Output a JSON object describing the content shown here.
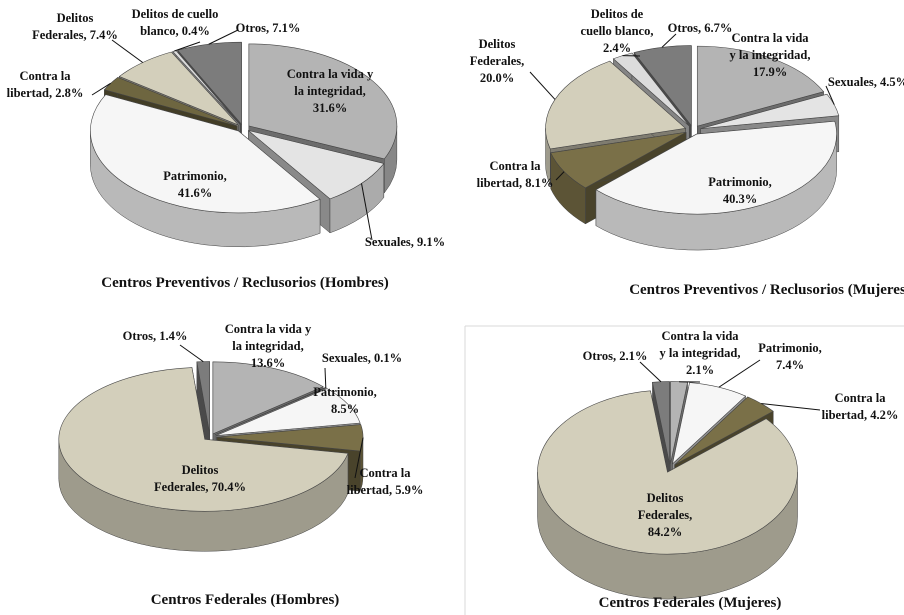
{
  "chart_data": [
    {
      "type": "pie",
      "title": "Centros Preventivos / Reclusorios (Hombres)",
      "values": [
        31.6,
        9.1,
        41.6,
        2.8,
        7.4,
        0.4,
        7.1
      ],
      "value_labels": [
        [
          "Contra la vida y",
          "la integridad,",
          "31.6%"
        ],
        [
          "Sexuales, 9.1%"
        ],
        [
          "Patrimonio,",
          "41.6%"
        ],
        [
          "Contra la",
          "libertad, 2.8%"
        ],
        [
          "Delitos",
          "Federales, 7.4%"
        ],
        [
          "Delitos de cuello",
          "blanco, 0.4%"
        ],
        [
          "Otros, 7.1%"
        ]
      ],
      "colors": [
        "#b4b4b4",
        "#e4e4e4",
        "#f6f6f6",
        "#6e6640",
        "#d3cfbb",
        "#dcdcdc",
        "#7c7c7c"
      ]
    },
    {
      "type": "pie",
      "title": "Centros Preventivos / Reclusorios (Mujeres)",
      "values": [
        17.9,
        4.5,
        40.3,
        8.1,
        20.0,
        2.4,
        6.7
      ],
      "value_labels": [
        [
          "Contra la vida",
          "y la integridad,",
          "17.9%"
        ],
        [
          "Sexuales, 4.5%"
        ],
        [
          "Patrimonio,",
          "40.3%"
        ],
        [
          "Contra la",
          "libertad, 8.1%"
        ],
        [
          "Delitos",
          "Federales,",
          "20.0%"
        ],
        [
          "Delitos de",
          "cuello blanco,",
          "2.4%"
        ],
        [
          "Otros, 6.7%"
        ]
      ],
      "colors": [
        "#b4b4b4",
        "#e4e4e4",
        "#f6f6f6",
        "#7a7048",
        "#d3cfbb",
        "#dcdcdc",
        "#7c7c7c"
      ]
    },
    {
      "type": "pie",
      "title": "Centros Federales (Hombres)",
      "values": [
        13.6,
        0.1,
        8.5,
        5.9,
        70.4,
        1.4
      ],
      "value_labels": [
        [
          "Contra la vida y",
          "la integridad,",
          "13.6%"
        ],
        [
          "Sexuales, 0.1%"
        ],
        [
          "Patrimonio,",
          "8.5%"
        ],
        [
          "Contra la",
          "libertad, 5.9%"
        ],
        [
          "Delitos",
          "Federales, 70.4%"
        ],
        [
          "Otros, 1.4%"
        ]
      ],
      "colors": [
        "#b4b4b4",
        "#e4e4e4",
        "#f6f6f6",
        "#7a7048",
        "#d3cfbb",
        "#7c7c7c"
      ]
    },
    {
      "type": "pie",
      "title": "Centros Federales (Mujeres)",
      "values": [
        2.1,
        7.4,
        4.2,
        84.2,
        2.1
      ],
      "value_labels": [
        [
          "Contra la vida",
          "y la integridad,",
          "2.1%"
        ],
        [
          "Patrimonio,",
          "7.4%"
        ],
        [
          "Contra la",
          "libertad, 4.2%"
        ],
        [
          "Delitos",
          "Federales,",
          "84.2%"
        ],
        [
          "Otros, 2.1%"
        ]
      ],
      "colors": [
        "#b4b4b4",
        "#f6f6f6",
        "#7a7048",
        "#d3cfbb",
        "#7c7c7c"
      ]
    }
  ]
}
